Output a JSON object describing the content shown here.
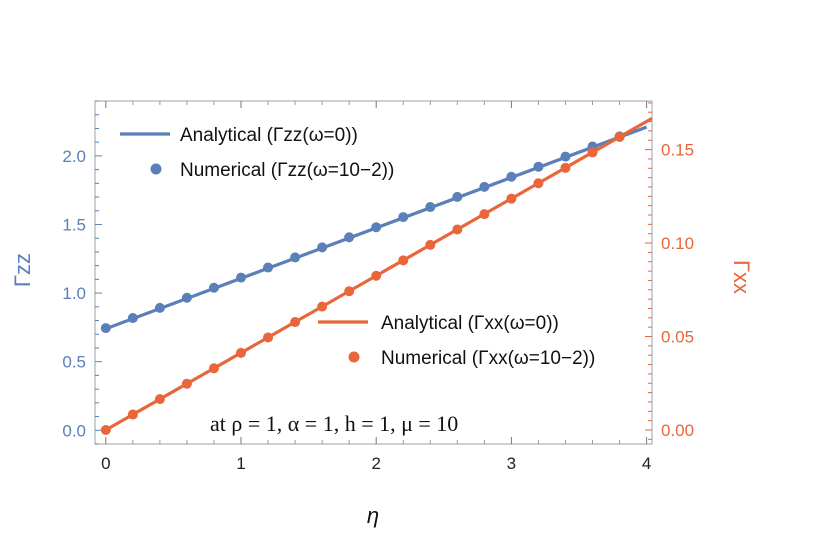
{
  "chart_data": {
    "type": "line",
    "xlabel": "η",
    "ylabel_left": "Γzz",
    "ylabel_right": "Γxx",
    "xlim": [
      -0.08,
      4.04
    ],
    "ylim_left": [
      -0.1,
      2.4
    ],
    "ylim_right": [
      -0.0075,
      0.176
    ],
    "x_ticks": [
      "0",
      "1",
      "2",
      "3",
      "4"
    ],
    "y_ticks_left": [
      "0.0",
      "0.5",
      "1.0",
      "1.5",
      "2.0"
    ],
    "y_ticks_right": [
      "0.00",
      "0.05",
      "0.10",
      "0.15"
    ],
    "colors": {
      "zz": "#5b7fb8",
      "xx": "#e8663a",
      "frame": "#9aa3ad"
    },
    "annotation": "at ρ = 1,  α = 1,  h = 1,  μ = 10",
    "series": [
      {
        "name": "Analytical (Γzz(ω=0))",
        "axis": "left",
        "kind": "line",
        "color": "#5b7fb8",
        "x": [
          0,
          4
        ],
        "y": [
          0.74,
          2.21
        ]
      },
      {
        "name": "Numerical (Γzz(ω=10−2))",
        "axis": "left",
        "kind": "scatter",
        "color": "#5b7fb8",
        "x": [
          0,
          0.2,
          0.4,
          0.6,
          0.8,
          1.0,
          1.2,
          1.4,
          1.6,
          1.8,
          2.0,
          2.2,
          2.4,
          2.6,
          2.8,
          3.0,
          3.2,
          3.4,
          3.6,
          3.8
        ],
        "y": [
          0.745,
          0.818,
          0.892,
          0.966,
          1.039,
          1.113,
          1.186,
          1.26,
          1.333,
          1.407,
          1.48,
          1.554,
          1.627,
          1.701,
          1.774,
          1.848,
          1.921,
          1.995,
          2.068,
          2.142
        ]
      },
      {
        "name": "Analytical (Γxx(ω=0))",
        "axis": "right",
        "kind": "line",
        "color": "#e8663a",
        "x": [
          0,
          4.04
        ],
        "y": [
          0,
          0.1667
        ]
      },
      {
        "name": "Numerical (Γxx(ω=10−2))",
        "axis": "right",
        "kind": "scatter",
        "color": "#e8663a",
        "x": [
          0,
          0.2,
          0.4,
          0.6,
          0.8,
          1.0,
          1.2,
          1.4,
          1.6,
          1.8,
          2.0,
          2.2,
          2.4,
          2.6,
          2.8,
          3.0,
          3.2,
          3.4,
          3.6,
          3.8
        ],
        "y": [
          0,
          0.00825,
          0.0165,
          0.02475,
          0.033,
          0.04125,
          0.0495,
          0.05775,
          0.066,
          0.07425,
          0.0825,
          0.09075,
          0.099,
          0.10725,
          0.1155,
          0.12375,
          0.132,
          0.14025,
          0.1485,
          0.15675
        ]
      }
    ],
    "legends": [
      {
        "placement": "top-left",
        "entries": [
          {
            "kind": "line",
            "color": "#5b7fb8",
            "label": "Analytical (Γzz(ω=0))"
          },
          {
            "kind": "dot",
            "color": "#5b7fb8",
            "label": "Numerical (Γzz(ω=10−2))"
          }
        ]
      },
      {
        "placement": "center-right",
        "entries": [
          {
            "kind": "line",
            "color": "#e8663a",
            "label": "Analytical (Γxx(ω=0))"
          },
          {
            "kind": "dot",
            "color": "#e8663a",
            "label": "Numerical (Γxx(ω=10−2))"
          }
        ]
      }
    ]
  }
}
